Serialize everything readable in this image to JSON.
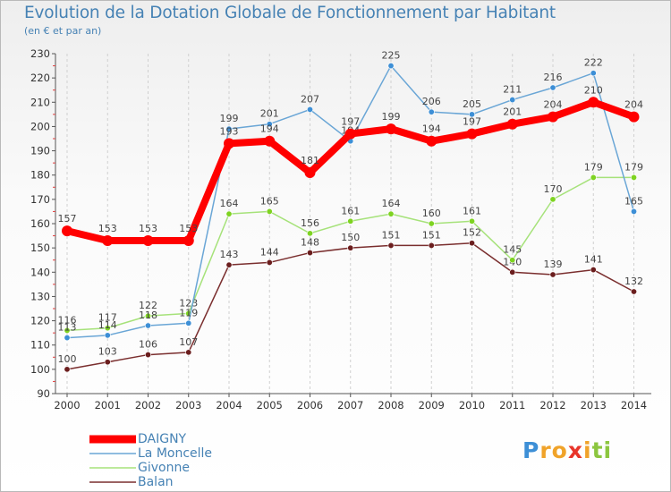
{
  "title": "Evolution de la Dotation Globale de Fonctionnement par Habitant",
  "subtitle": "(en € et par an)",
  "brand": {
    "text": "Proxiti",
    "colors": {
      "p": "#3d8fd6",
      "x": "#e8352a",
      "rest": "#f0a32a",
      "last": "#8cc63f"
    }
  },
  "chart_data": {
    "type": "line",
    "title": "Evolution de la Dotation Globale de Fonctionnement par Habitant",
    "subtitle": "(en € et par an)",
    "xlabel": "",
    "ylabel": "",
    "x": [
      2000,
      2001,
      2002,
      2003,
      2004,
      2005,
      2006,
      2007,
      2008,
      2009,
      2010,
      2011,
      2012,
      2013,
      2014
    ],
    "ylim": [
      90,
      230
    ],
    "yticks": [
      90,
      100,
      110,
      120,
      130,
      140,
      150,
      160,
      170,
      180,
      190,
      200,
      210,
      220,
      230
    ],
    "grid": "vertical dashed",
    "legend_position": "bottom-left",
    "series": [
      {
        "name": "Balan",
        "color": "#6b1e1e",
        "line_color": "#7a2e2e",
        "values": [
          100,
          103,
          106,
          107,
          143,
          144,
          148,
          150,
          151,
          151,
          152,
          140,
          139,
          141,
          132
        ]
      },
      {
        "name": "Givonne",
        "color": "#7ed321",
        "line_color": "#a6e27a",
        "values": [
          116,
          117,
          122,
          123,
          164,
          165,
          156,
          161,
          164,
          160,
          161,
          145,
          170,
          179,
          179
        ]
      },
      {
        "name": "La Moncelle",
        "color": "#3d8fd6",
        "line_color": "#6aa6d6",
        "values": [
          113,
          114,
          118,
          119,
          199,
          201,
          207,
          194,
          225,
          206,
          205,
          211,
          216,
          222,
          165
        ]
      },
      {
        "name": "DAIGNY",
        "color": "#ff0000",
        "line_color": "#ff0000",
        "values": [
          157,
          153,
          153,
          153,
          193,
          194,
          181,
          197,
          199,
          194,
          197,
          201,
          204,
          210,
          204
        ]
      }
    ],
    "legend": [
      "DAIGNY",
      "La Moncelle",
      "Givonne",
      "Balan"
    ]
  }
}
